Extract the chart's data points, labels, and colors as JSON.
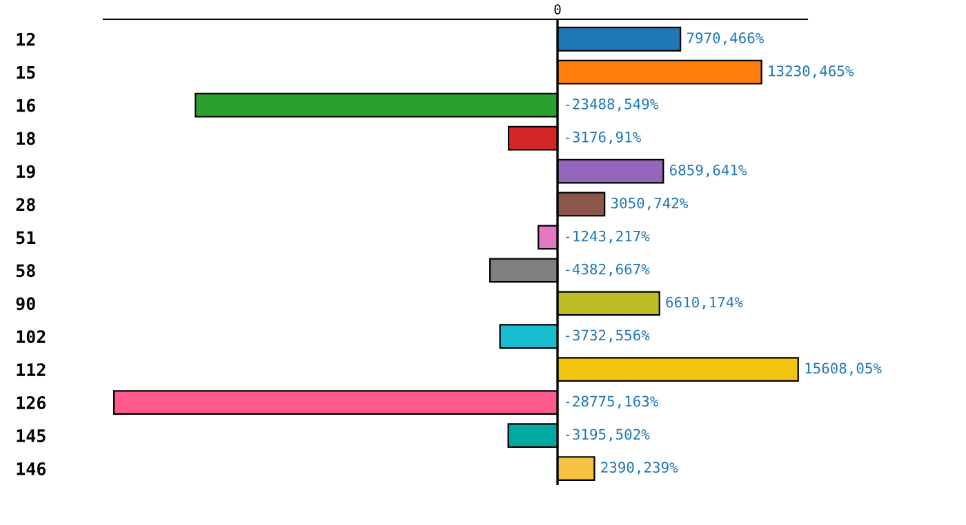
{
  "chart_data": {
    "type": "bar",
    "orientation": "horizontal",
    "xlim": [
      -29450,
      16200
    ],
    "categories": [
      "12",
      "15",
      "16",
      "18",
      "19",
      "28",
      "51",
      "58",
      "90",
      "102",
      "112",
      "126",
      "145",
      "146"
    ],
    "values": [
      7970.466,
      13230.465,
      -23488.549,
      -3176.91,
      6859.641,
      3050.742,
      -1243.217,
      -4382.667,
      6610.174,
      -3732.556,
      15608.05,
      -28775.163,
      -3195.502,
      2390.239
    ],
    "value_labels": [
      "7970,466%",
      "13230,465%",
      "-23488,549%",
      "-3176,91%",
      "6859,641%",
      "3050,742%",
      "-1243,217%",
      "-4382,667%",
      "6610,174%",
      "-3732,556%",
      "15608,05%",
      "-28775,163%",
      "-3195,502%",
      "2390,239%"
    ],
    "colors": [
      "#1f77b4",
      "#ff7f0e",
      "#2ca02c",
      "#d62728",
      "#9467bd",
      "#8c564b",
      "#e377c2",
      "#7f7f7f",
      "#bcbd22",
      "#17becf",
      "#f1c40f",
      "#ff5a8c",
      "#00aaa0",
      "#f5c242"
    ],
    "annotations": [
      "0"
    ],
    "grid": false,
    "legend": false
  }
}
